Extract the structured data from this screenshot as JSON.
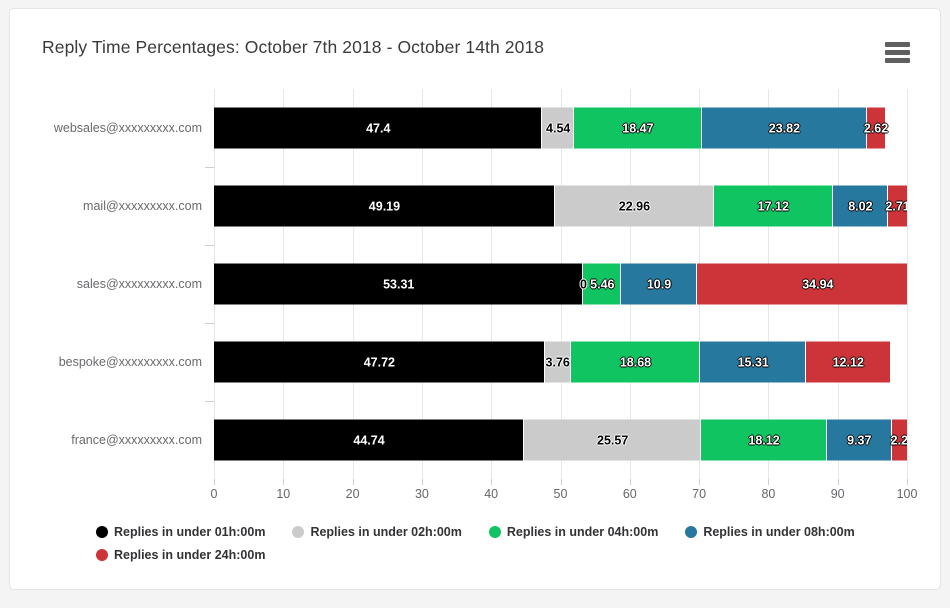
{
  "icons": {
    "menu_icon": "hamburger-icon"
  },
  "chart_data": {
    "type": "bar",
    "orientation": "horizontal",
    "stacked": true,
    "title": "Reply Time Percentages: October 7th 2018 - October 14th 2018",
    "categories": [
      "websales@xxxxxxxxx.com",
      "mail@xxxxxxxxx.com",
      "sales@xxxxxxxxx.com",
      "bespoke@xxxxxxxxx.com",
      "france@xxxxxxxxx.com"
    ],
    "series": [
      {
        "name": "Replies in under 01h:00m",
        "color": "#000000",
        "label_text_color": "#ffffff",
        "label_outline_color": "",
        "values": [
          47.4,
          49.19,
          53.31,
          47.72,
          44.74
        ]
      },
      {
        "name": "Replies in under 02h:00m",
        "color": "#cbcbcb",
        "label_text_color": "#000000",
        "label_outline_color": "#ffffff",
        "values": [
          4.54,
          22.96,
          0,
          3.76,
          25.57
        ]
      },
      {
        "name": "Replies in under 04h:00m",
        "color": "#10c461",
        "label_text_color": "#ffffff",
        "label_outline_color": "#000000",
        "values": [
          18.47,
          17.12,
          5.46,
          18.68,
          18.12
        ]
      },
      {
        "name": "Replies in under 08h:00m",
        "color": "#27789f",
        "label_text_color": "#ffffff",
        "label_outline_color": "#000000",
        "values": [
          23.82,
          8.02,
          10.9,
          15.31,
          9.37
        ]
      },
      {
        "name": "Replies in under 24h:00m",
        "color": "#cc3439",
        "label_text_color": "#ffffff",
        "label_outline_color": "#000000",
        "values": [
          2.62,
          2.71,
          34.94,
          12.12,
          2.2
        ]
      }
    ],
    "x_ticks": [
      0,
      10,
      20,
      30,
      40,
      50,
      60,
      70,
      80,
      90,
      100
    ],
    "xlim": [
      0,
      100
    ],
    "grid": "vertical",
    "legend_position": "bottom-left",
    "grid_color": "#e7e7e7",
    "tick_color": "#cdcdcd"
  }
}
